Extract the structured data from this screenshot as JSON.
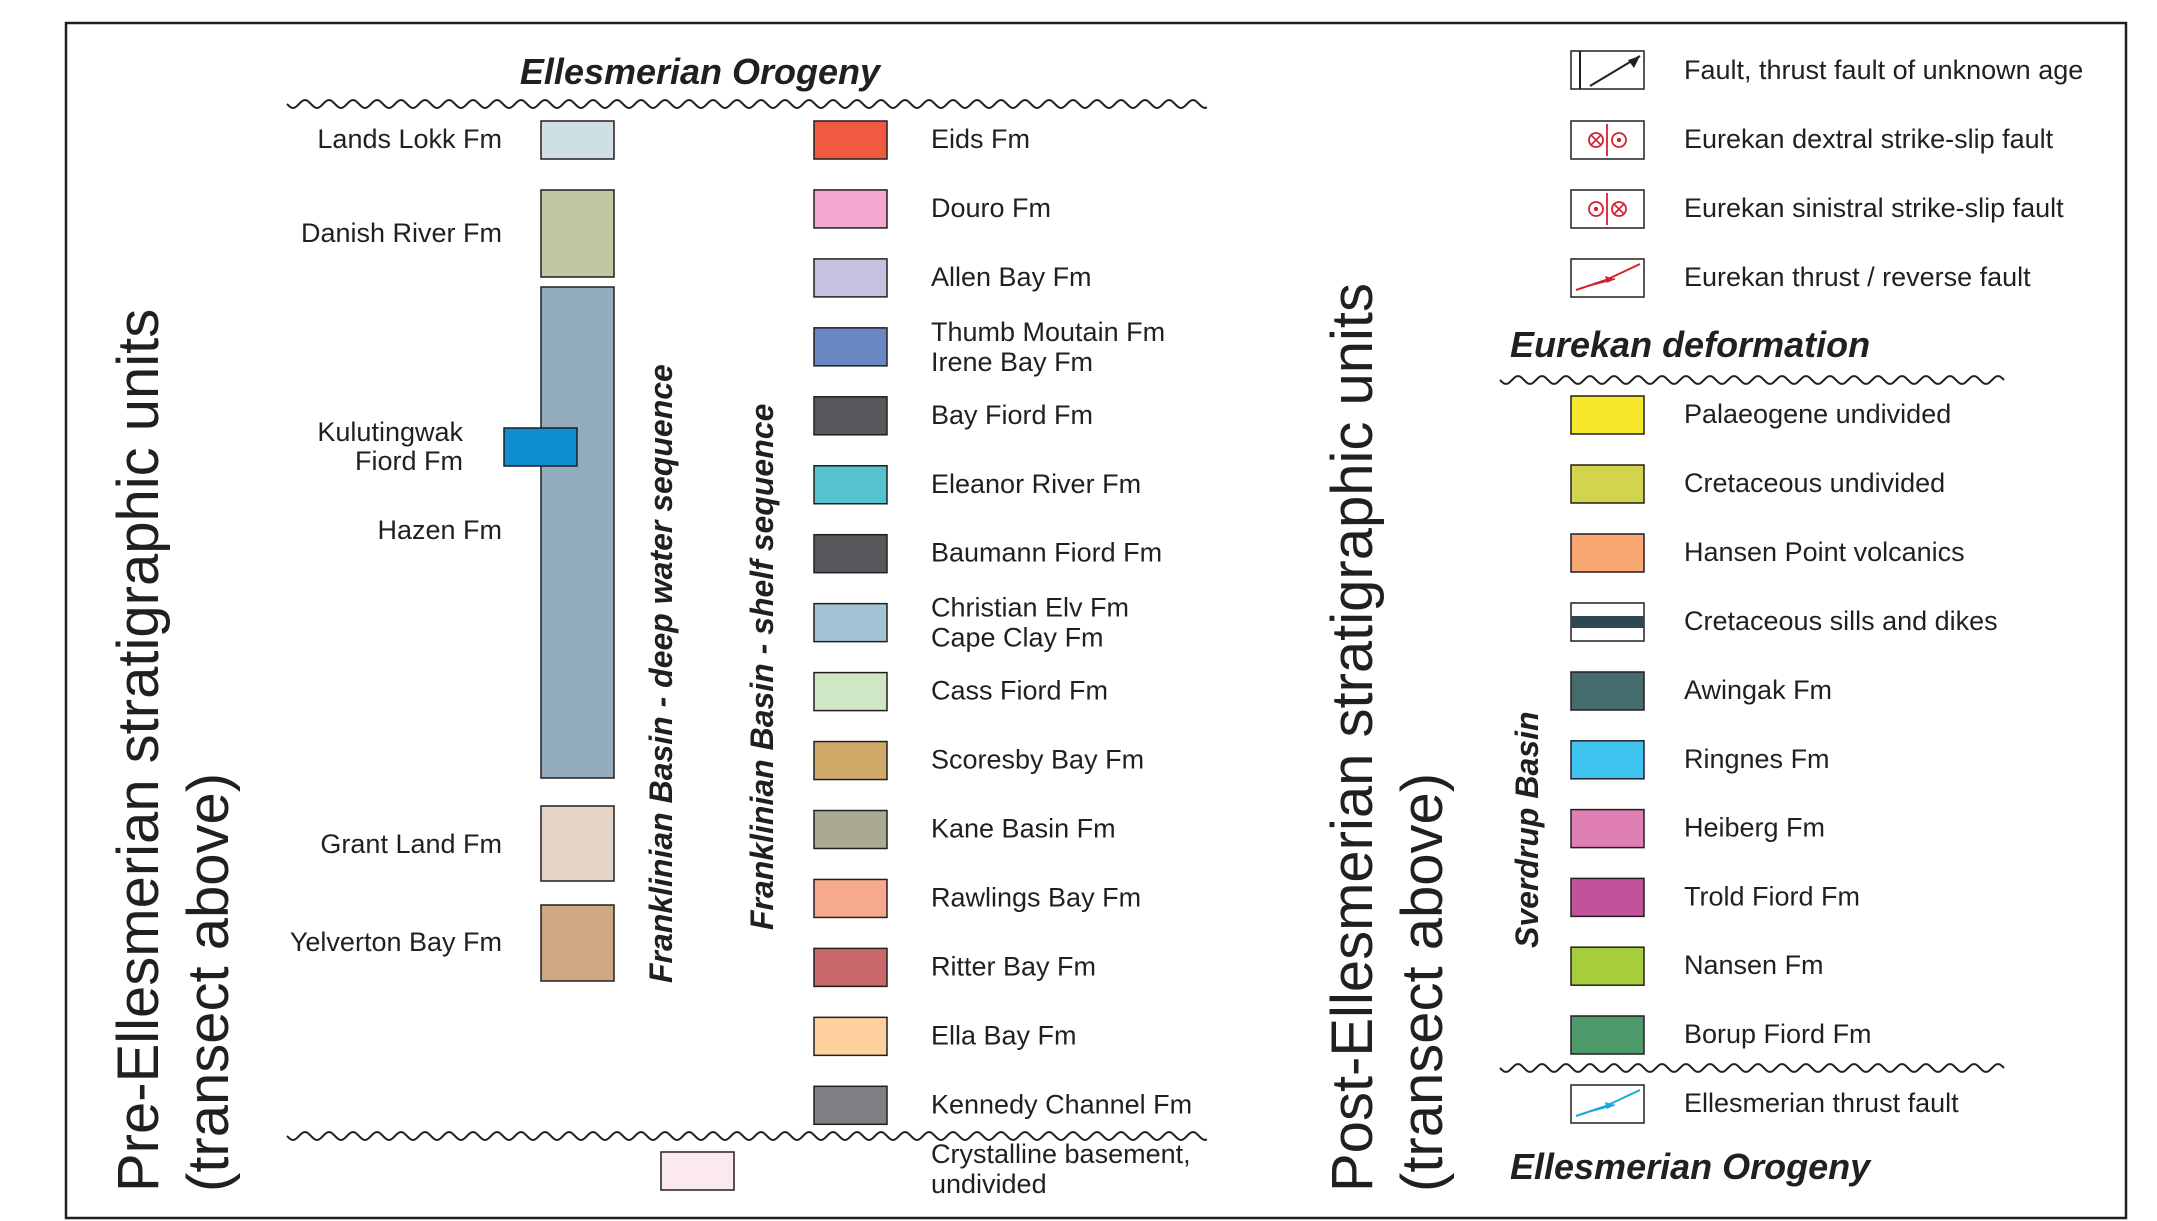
{
  "headings": {
    "ellesmerian_top": "Ellesmerian Orogeny",
    "eurekan": "Eurekan deformation",
    "ellesmerian_bottom": "Ellesmerian Orogeny"
  },
  "side_titles": {
    "pre_line1": "Pre-Ellesmerian stratigraphic units",
    "pre_line2": "(transect above)",
    "post_line1": "Post-Ellesmerian stratigraphic units",
    "post_line2": "(transect above)"
  },
  "basin_labels": {
    "deep": "Franklinian Basin - deep water sequence",
    "shelf": "Franklinian Basin - shelf sequence",
    "sverdrup": "Sverdrup Basin"
  },
  "deep_units": [
    {
      "name": "Lands Lokk Fm",
      "color": "#cfdfe6"
    },
    {
      "name": "Danish River Fm",
      "color": "#c1c7a0"
    },
    {
      "name": "Hazen Fm",
      "color": "#94adbc"
    },
    {
      "name": "Kulutingwak",
      "name2": "Fiord Fm",
      "color": "#0f8ed4"
    },
    {
      "name": "Grant Land Fm",
      "color": "#e5d4c8"
    },
    {
      "name": "Yelverton Bay Fm",
      "color": "#cda880"
    }
  ],
  "shelf_units": [
    {
      "name": "Eids Fm",
      "color": "#f05a40"
    },
    {
      "name": "Douro Fm",
      "color": "#f2a8cf"
    },
    {
      "name": "Allen Bay Fm",
      "color": "#c6c1e0"
    },
    {
      "name": "Thumb Moutain Fm",
      "name2": "Irene Bay Fm",
      "color": "#6b87c3"
    },
    {
      "name": "Bay Fiord Fm",
      "color": "#56585b"
    },
    {
      "name": "Eleanor River Fm",
      "color": "#54c2cf"
    },
    {
      "name": "Baumann Fiord Fm",
      "color": "#56585b"
    },
    {
      "name": "Christian Elv Fm",
      "name2": "Cape Clay Fm",
      "color": "#a2c4d6"
    },
    {
      "name": "Cass Fiord Fm",
      "color": "#cfe7c5"
    },
    {
      "name": "Scoresby Bay Fm",
      "color": "#d1aa69"
    },
    {
      "name": "Kane Basin Fm",
      "color": "#aaa991"
    },
    {
      "name": "Rawlings Bay Fm",
      "color": "#f6a98d"
    },
    {
      "name": "Ritter Bay Fm",
      "color": "#c8686a"
    },
    {
      "name": "Ella Bay Fm",
      "color": "#fed09e"
    },
    {
      "name": "Kennedy Channel Fm",
      "color": "#7e8083"
    }
  ],
  "basement": {
    "name": "Crystalline basement,",
    "name2": "undivided",
    "color": "#fce8f1"
  },
  "structures": [
    {
      "label": "Fault, thrust fault of unknown age",
      "icon": "fault-unknown-age-icon"
    },
    {
      "label": "Eurekan dextral strike-slip fault",
      "icon": "dextral-strike-slip-icon"
    },
    {
      "label": "Eurekan sinistral strike-slip fault",
      "icon": "sinistral-strike-slip-icon"
    },
    {
      "label": "Eurekan thrust / reverse fault",
      "icon": "eurekan-thrust-icon"
    }
  ],
  "eurekan_units": [
    {
      "name": "Palaeogene undivided",
      "color": "#f6e72b"
    },
    {
      "name": "Cretaceous undivided",
      "color": "#d2d44c"
    },
    {
      "name": "Hansen Point volcanics",
      "color": "#f9a873"
    },
    {
      "name": "Cretaceous sills and dikes",
      "color": "#2f4752"
    }
  ],
  "sverdrup_units": [
    {
      "name": "Awingak Fm",
      "color": "#456d6d"
    },
    {
      "name": "Ringnes Fm",
      "color": "#3cc3ef"
    },
    {
      "name": "Heiberg Fm",
      "color": "#e07eb6"
    },
    {
      "name": "Trold Fiord Fm",
      "color": "#c3529c"
    },
    {
      "name": "Nansen Fm",
      "color": "#a6ce3b"
    },
    {
      "name": "Borup Fiord Fm",
      "color": "#4f9a6b"
    }
  ],
  "ellesmerian_thrust": {
    "label": "Ellesmerian thrust fault",
    "color": "#1aa6e0"
  },
  "fault_colors": {
    "eurekan": "#d12230",
    "outline": "#231f20"
  }
}
